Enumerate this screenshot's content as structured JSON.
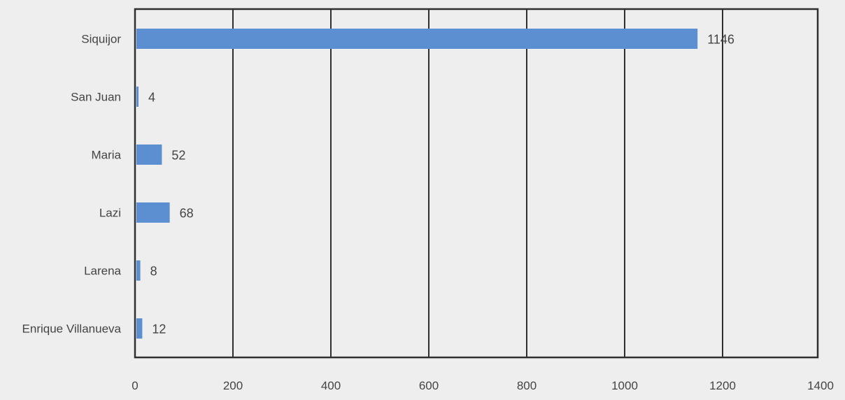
{
  "chart_data": {
    "type": "bar",
    "orientation": "horizontal",
    "categories": [
      "Siquijor",
      "San Juan",
      "Maria",
      "Lazi",
      "Larena",
      "Enrique Villanueva"
    ],
    "values": [
      1146,
      4,
      52,
      68,
      8,
      12
    ],
    "data_labels": [
      "1146",
      "4",
      "52",
      "68",
      "8",
      "12"
    ],
    "x_ticks": [
      0,
      200,
      400,
      600,
      800,
      1000,
      1200,
      1400
    ],
    "xlim": [
      0,
      1400
    ],
    "grid": "vertical",
    "colors": {
      "bar": "#5b8fd1",
      "grid": "#2f2f2f",
      "text": "#444444",
      "background": "#eeeeee"
    }
  }
}
